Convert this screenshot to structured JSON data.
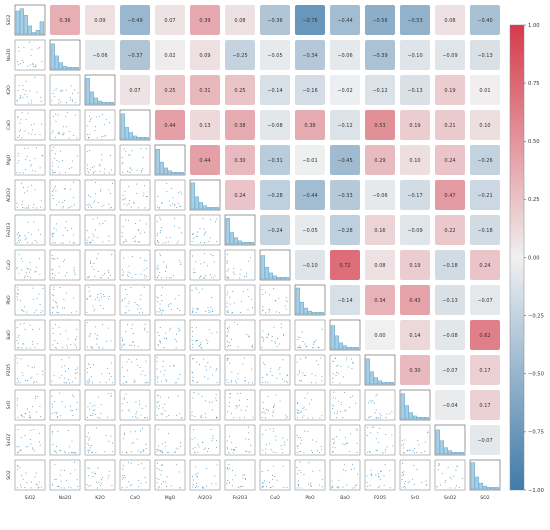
{
  "chart_data": {
    "type": "heatmap",
    "variables": [
      "SiO2",
      "Na2O",
      "K2O",
      "CaO",
      "MgO",
      "Al2O3",
      "Fe2O3",
      "CuO",
      "PbO",
      "BaO",
      "P2O5",
      "SrO",
      "SnO2",
      "SO2"
    ],
    "upper_triangle_correlations": [
      [
        0.36,
        0.09,
        -0.49,
        0.07,
        0.39,
        0.08,
        -0.36,
        -0.76,
        -0.44,
        -0.56,
        -0.53,
        0.08,
        -0.4
      ],
      [
        -0.06,
        -0.37,
        0.02,
        0.09,
        -0.25,
        -0.05,
        -0.34,
        -0.06,
        -0.39,
        -0.1,
        -0.09,
        -0.13
      ],
      [
        0.07,
        0.25,
        0.31,
        0.25,
        -0.14,
        -0.16,
        -0.02,
        -0.12,
        -0.13,
        0.19,
        0.01
      ],
      [
        0.44,
        0.13,
        0.38,
        -0.08,
        0.38,
        -0.12,
        0.53,
        0.19,
        0.21,
        0.1
      ],
      [
        0.44,
        0.3,
        -0.31,
        -0.01,
        -0.45,
        0.29,
        0.1,
        0.24,
        -0.26
      ],
      [
        0.24,
        -0.28,
        -0.44,
        -0.33,
        -0.06,
        -0.17,
        0.47,
        -0.21
      ],
      [
        -0.24,
        -0.05,
        -0.28,
        0.16,
        -0.09,
        0.22,
        -0.18
      ],
      [
        -0.1,
        0.72,
        0.08,
        0.19,
        -0.18,
        0.24
      ],
      [
        -0.14,
        0.34,
        0.43,
        -0.13,
        -0.07
      ],
      [
        0.0,
        0.14,
        -0.08,
        0.62
      ],
      [
        0.3,
        -0.07,
        0.17
      ],
      [
        -0.04,
        0.17
      ],
      [
        -0.07
      ]
    ],
    "diagonal": "histogram",
    "lower_triangle": "scatter",
    "colorbar": {
      "ticks": [
        "1.00",
        "0.75",
        "0.50",
        "0.25",
        "0.00",
        "−0.25",
        "−0.50",
        "−0.75",
        "−1.00"
      ],
      "range": [
        -1,
        1
      ],
      "colors": {
        "negative": "#3f7bab",
        "neutral": "#f0f0f0",
        "positive": "#d63a4a"
      }
    },
    "histogram_color": "#5fa5cf",
    "scatter_color": "#4a90b8"
  }
}
